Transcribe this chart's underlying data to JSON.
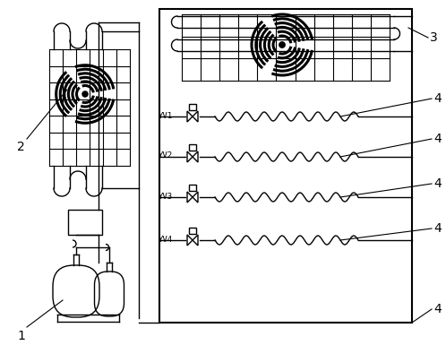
{
  "bg_color": "#ffffff",
  "line_color": "#000000",
  "valve_labels": [
    "YV1",
    "YV2",
    "YV3",
    "YV4"
  ],
  "fig_w": 4.98,
  "fig_h": 3.85,
  "dpi": 100
}
